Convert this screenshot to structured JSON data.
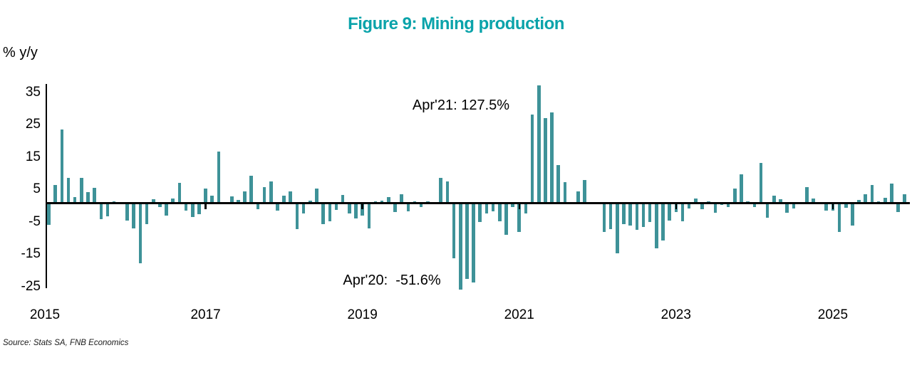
{
  "title": "Figure 9: Mining production",
  "y_axis_unit": "% y/y",
  "source": "Source: Stats SA, FNB Economics",
  "annotations": {
    "peak": "Apr'21: 127.5%",
    "trough": "Apr'20:  -51.6%"
  },
  "colors": {
    "title": "#0AA3AA",
    "bar": "#3E9298",
    "axis": "#000000"
  },
  "chart_data": {
    "type": "bar",
    "title": "Figure 9: Mining production",
    "ylabel": "% y/y",
    "unit": "percent year-on-year",
    "frequency": "monthly",
    "start_period": "2015-01",
    "end_period": "2025-12",
    "ylim": [
      -25,
      35
    ],
    "y_ticks": [
      35,
      25,
      15,
      5,
      -5,
      -15,
      -25
    ],
    "x_ticks": [
      "2015",
      "2017",
      "2019",
      "2021",
      "2023",
      "2025"
    ],
    "grid": false,
    "legend": "none",
    "clipped_points": [
      {
        "period": "2020-04",
        "value": -51.6,
        "label": "Apr'20:  -51.6%"
      },
      {
        "period": "2021-04",
        "value": 127.5,
        "label": "Apr'21: 127.5%"
      }
    ],
    "values": [
      -6.8,
      5.5,
      22.8,
      7.9,
      1.9,
      7.9,
      3.5,
      4.7,
      -5.0,
      -4.0,
      0.5,
      0.4,
      -5.4,
      -7.8,
      -18.5,
      -6.5,
      1.2,
      -1.1,
      -3.9,
      1.5,
      6.3,
      -2.2,
      -4.2,
      -3.3,
      4.4,
      2.3,
      16.0,
      -0.1,
      2.0,
      0.9,
      3.7,
      8.5,
      -1.8,
      5.0,
      6.6,
      -2.2,
      2.4,
      3.7,
      -8.0,
      -3.1,
      0.8,
      4.4,
      -6.5,
      -5.6,
      -2.0,
      2.6,
      -3.1,
      -4.7,
      -3.9,
      -7.8,
      0.5,
      0.7,
      1.8,
      -2.8,
      2.8,
      -2.6,
      0.6,
      -1.3,
      0.5,
      0.4,
      7.8,
      6.7,
      -17.0,
      -51.6,
      -23.3,
      -24.5,
      -5.8,
      -3.1,
      -2.6,
      -5.5,
      -9.7,
      -1.3,
      -8.8,
      -3.1,
      27.4,
      127.5,
      26.2,
      28.0,
      11.7,
      6.5,
      -0.4,
      3.7,
      7.1,
      0.4,
      0.3,
      -9.0,
      -8.0,
      -15.5,
      -6.4,
      -7.0,
      -8.2,
      -7.3,
      -5.8,
      -13.9,
      -11.5,
      -5.3,
      -2.8,
      -5.5,
      -1.7,
      1.5,
      -1.8,
      0.5,
      -3.0,
      -0.6,
      -1.3,
      4.5,
      8.8,
      0.5,
      -1.3,
      12.5,
      -4.6,
      2.2,
      1.1,
      -2.9,
      -1.7,
      0.4,
      4.9,
      1.4,
      -0.1,
      -2.4,
      -2.4,
      -8.8,
      -1.5,
      -6.9,
      1.0,
      2.7,
      5.6,
      0.5,
      1.6,
      6.0,
      -2.8,
      2.8
    ]
  }
}
